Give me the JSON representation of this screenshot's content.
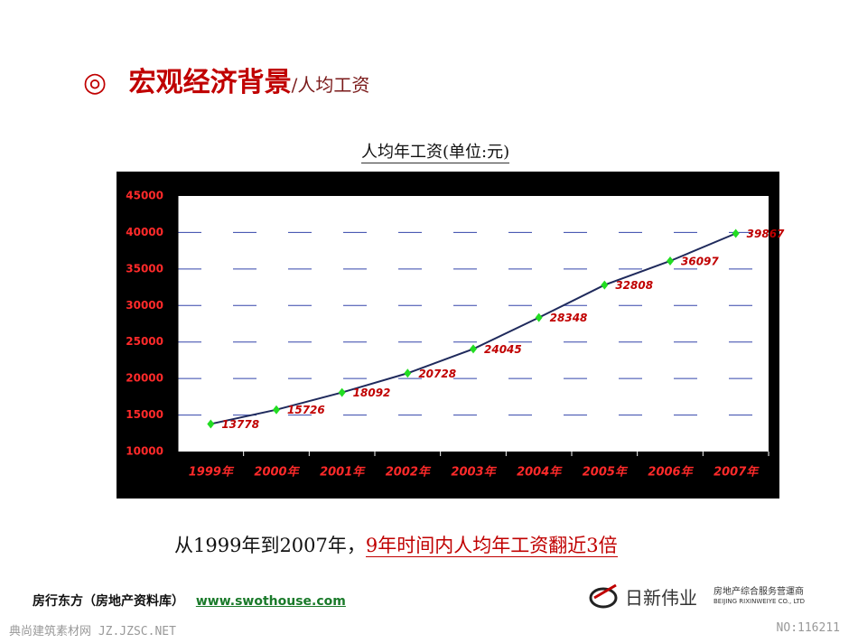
{
  "header": {
    "symbol": "◎",
    "title": "宏观经济背景",
    "subtitle": "/人均工资"
  },
  "chart_data": {
    "type": "line",
    "title": "人均年工资(单位:元)",
    "categories": [
      "1999年",
      "2000年",
      "2001年",
      "2002年",
      "2003年",
      "2004年",
      "2005年",
      "2006年",
      "2007年"
    ],
    "series": [
      {
        "name": "人均年工资",
        "color": "#1f2a5c",
        "marker_color": "#22dd22",
        "values": [
          13778,
          15726,
          18092,
          20728,
          24045,
          28348,
          32808,
          36097,
          39867
        ]
      }
    ],
    "ylim": [
      10000,
      45000
    ],
    "yticks": [
      10000,
      15000,
      20000,
      25000,
      30000,
      35000,
      40000,
      45000
    ],
    "grid": true,
    "legend": false
  },
  "summary": {
    "prefix": "从1999年到2007年，",
    "highlight": "9年时间内人均年工资翻近3倍"
  },
  "footer": {
    "source": "房行东方（房地产资料库）",
    "url": "www.swothouse.com",
    "logo_name": "日新伟业",
    "logo_tagline": "房地产综合服务营運商",
    "logo_en": "BEIJING RIXINWEIYE CO., LTD",
    "watermark": "典尚建筑素材网 JZ.JZSC.NET",
    "number": "NO:116211"
  }
}
